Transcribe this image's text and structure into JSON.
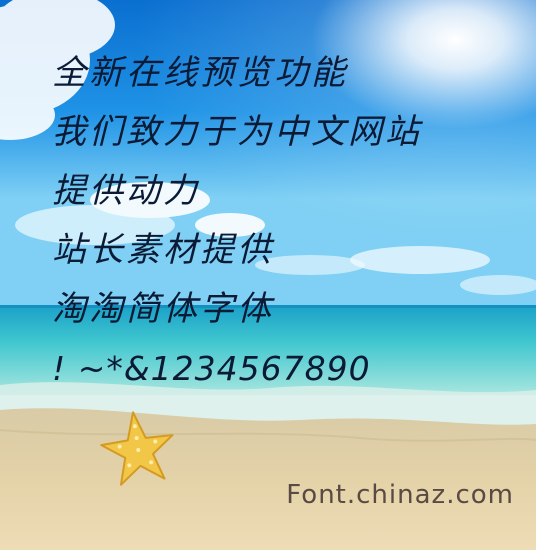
{
  "preview_lines": [
    "全新在线预览功能",
    "我们致力于为中文网站",
    "提供动力",
    "站长素材提供",
    "淘淘简体字体",
    "! ~*&1234567890"
  ],
  "credit": "Font.chinaz.com"
}
